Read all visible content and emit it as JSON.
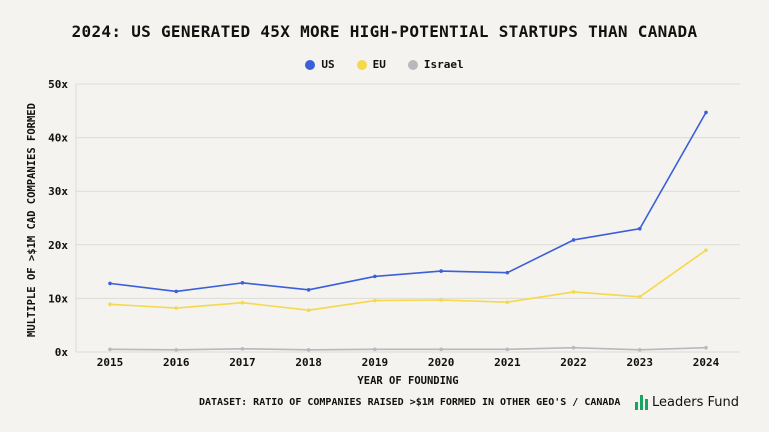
{
  "title": "2024: US GENERATED 45X MORE HIGH-POTENTIAL STARTUPS THAN CANADA",
  "footer_note": "DATASET: RATIO OF COMPANIES RAISED >$1M FORMED IN OTHER GEO'S / CANADA",
  "brand": {
    "name": "Leaders Fund",
    "icon": "bar-logo-icon",
    "color": "#1aa463"
  },
  "chart_data": {
    "type": "line",
    "title": "2024: US GENERATED 45X MORE HIGH-POTENTIAL STARTUPS THAN CANADA",
    "xlabel": "YEAR OF FOUNDING",
    "ylabel": "MULTIPLE OF >$1M CAD COMPANIES FORMED",
    "x": [
      "2015",
      "2016",
      "2017",
      "2018",
      "2019",
      "2020",
      "2021",
      "2022",
      "2023",
      "2024"
    ],
    "ylim": [
      0,
      50
    ],
    "yticks": [
      0,
      10,
      20,
      30,
      40,
      50
    ],
    "ytick_labels": [
      "0x",
      "10x",
      "20x",
      "30x",
      "40x",
      "50x"
    ],
    "grid": true,
    "legend": "top-center",
    "series": [
      {
        "name": "US",
        "color": "#3b5fd9",
        "values": [
          12.8,
          11.3,
          12.9,
          11.6,
          14.1,
          15.1,
          14.8,
          20.9,
          23.0,
          44.7
        ]
      },
      {
        "name": "EU",
        "color": "#f5d94a",
        "values": [
          8.9,
          8.2,
          9.2,
          7.8,
          9.6,
          9.7,
          9.3,
          11.2,
          10.3,
          19.0
        ]
      },
      {
        "name": "Israel",
        "color": "#b8b8bd",
        "values": [
          0.5,
          0.4,
          0.6,
          0.4,
          0.5,
          0.5,
          0.5,
          0.8,
          0.4,
          0.8
        ]
      }
    ]
  }
}
